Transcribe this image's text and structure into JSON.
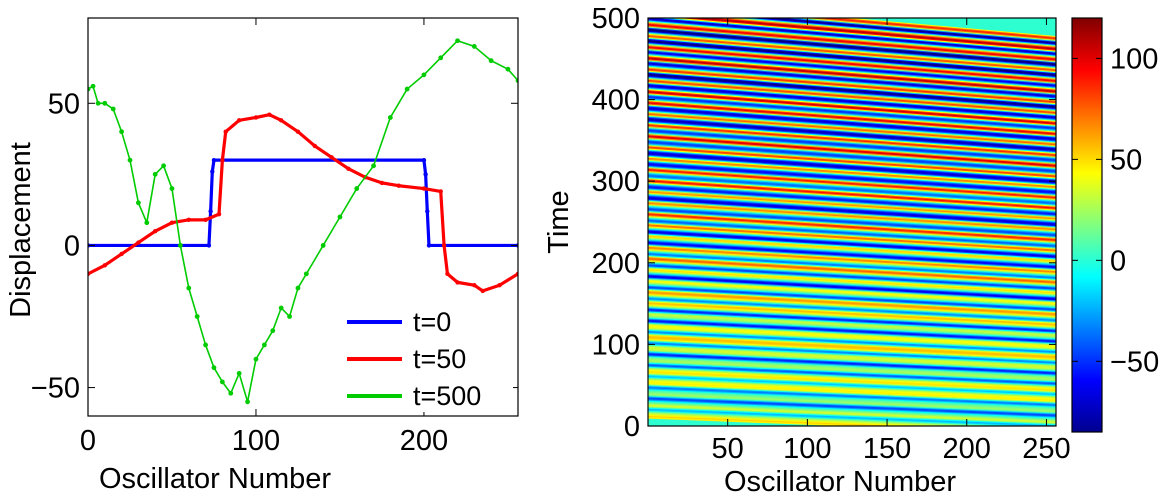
{
  "chart_data": [
    {
      "type": "line",
      "xlabel": "Oscillator Number",
      "ylabel": "Displacement",
      "xlim": [
        0,
        256
      ],
      "ylim": [
        -60,
        80
      ],
      "xticks": [
        0,
        100,
        200
      ],
      "yticks": [
        -50,
        0,
        50
      ],
      "legend_position": "bottom-right",
      "series": [
        {
          "name": "t=0",
          "color": "#0000ff",
          "points": [
            [
              0,
              0
            ],
            [
              72,
              0
            ],
            [
              73,
              12
            ],
            [
              74,
              26
            ],
            [
              75,
              30
            ],
            [
              200,
              30
            ],
            [
              201,
              25
            ],
            [
              202,
              12
            ],
            [
              203,
              0
            ],
            [
              256,
              0
            ]
          ]
        },
        {
          "name": "t=50",
          "color": "#ff0000",
          "points": [
            [
              0,
              -10
            ],
            [
              10,
              -7
            ],
            [
              20,
              -3
            ],
            [
              30,
              1
            ],
            [
              40,
              5
            ],
            [
              50,
              8
            ],
            [
              60,
              9
            ],
            [
              70,
              9
            ],
            [
              78,
              11
            ],
            [
              80,
              30
            ],
            [
              82,
              40
            ],
            [
              90,
              44
            ],
            [
              100,
              45
            ],
            [
              108,
              46
            ],
            [
              115,
              44
            ],
            [
              125,
              40
            ],
            [
              135,
              35
            ],
            [
              145,
              31
            ],
            [
              155,
              27
            ],
            [
              165,
              24
            ],
            [
              175,
              22
            ],
            [
              185,
              21
            ],
            [
              200,
              20
            ],
            [
              210,
              19
            ],
            [
              212,
              0
            ],
            [
              214,
              -10
            ],
            [
              220,
              -13
            ],
            [
              230,
              -14
            ],
            [
              235,
              -16
            ],
            [
              245,
              -14
            ],
            [
              256,
              -10
            ]
          ]
        },
        {
          "name": "t=500",
          "color": "#00cc00",
          "points": [
            [
              0,
              55
            ],
            [
              3,
              56
            ],
            [
              6,
              50
            ],
            [
              10,
              50
            ],
            [
              15,
              48
            ],
            [
              20,
              40
            ],
            [
              25,
              30
            ],
            [
              30,
              15
            ],
            [
              35,
              8
            ],
            [
              40,
              25
            ],
            [
              45,
              28
            ],
            [
              50,
              20
            ],
            [
              55,
              0
            ],
            [
              60,
              -15
            ],
            [
              65,
              -25
            ],
            [
              70,
              -35
            ],
            [
              75,
              -43
            ],
            [
              80,
              -48
            ],
            [
              85,
              -52
            ],
            [
              90,
              -45
            ],
            [
              95,
              -55
            ],
            [
              100,
              -40
            ],
            [
              105,
              -35
            ],
            [
              110,
              -30
            ],
            [
              115,
              -22
            ],
            [
              120,
              -25
            ],
            [
              125,
              -15
            ],
            [
              130,
              -10
            ],
            [
              140,
              0
            ],
            [
              150,
              10
            ],
            [
              160,
              20
            ],
            [
              170,
              28
            ],
            [
              180,
              45
            ],
            [
              190,
              55
            ],
            [
              200,
              60
            ],
            [
              210,
              66
            ],
            [
              220,
              72
            ],
            [
              230,
              70
            ],
            [
              240,
              65
            ],
            [
              250,
              62
            ],
            [
              256,
              58
            ]
          ]
        }
      ]
    },
    {
      "type": "heatmap",
      "xlabel": "Oscillator Number",
      "ylabel": "Time",
      "xlim": [
        0,
        256
      ],
      "ylim": [
        0,
        500
      ],
      "xticks": [
        50,
        100,
        150,
        200,
        250
      ],
      "yticks": [
        0,
        100,
        200,
        300,
        400,
        500
      ],
      "colorbar": {
        "colormap": "jet",
        "range": [
          -85,
          120
        ],
        "ticks": [
          -50,
          0,
          50,
          100
        ],
        "tick_labels": [
          "−50",
          "0",
          "50",
          "100"
        ]
      }
    }
  ]
}
